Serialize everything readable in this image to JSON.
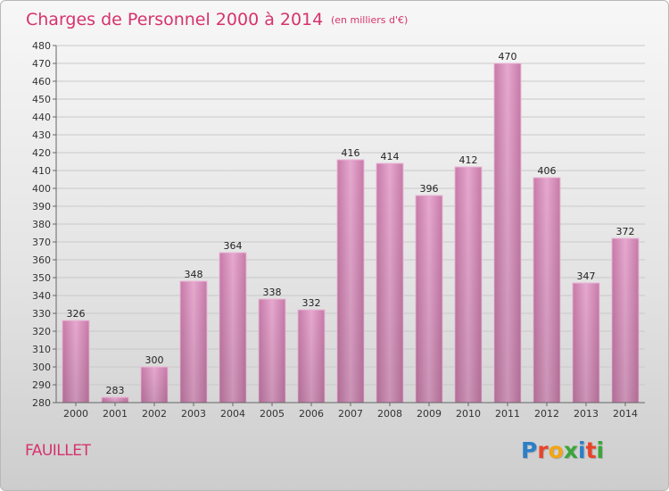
{
  "chart_data": {
    "type": "bar",
    "title": "Charges de Personnel 2000 à 2014",
    "subtitle": "(en milliers d'€)",
    "categories": [
      "2000",
      "2001",
      "2002",
      "2003",
      "2004",
      "2005",
      "2006",
      "2007",
      "2008",
      "2009",
      "2010",
      "2011",
      "2012",
      "2013",
      "2014"
    ],
    "values": [
      326,
      283,
      300,
      348,
      364,
      338,
      332,
      416,
      414,
      396,
      412,
      470,
      406,
      347,
      372
    ],
    "ylim": [
      280,
      480
    ],
    "ytick_step": 10,
    "grid": true,
    "bar_color": "#d98fbd"
  },
  "commune": "FAUILLET",
  "logo": {
    "letters": [
      {
        "ch": "P",
        "color": "#2b7fc9"
      },
      {
        "ch": "r",
        "color": "#e8442a"
      },
      {
        "ch": "o",
        "color": "#f2a516"
      },
      {
        "ch": "x",
        "color": "#3aa63a"
      },
      {
        "ch": "i",
        "color": "#2b7fc9"
      },
      {
        "ch": "t",
        "color": "#e8442a"
      },
      {
        "ch": "i",
        "color": "#3aa63a"
      }
    ]
  }
}
